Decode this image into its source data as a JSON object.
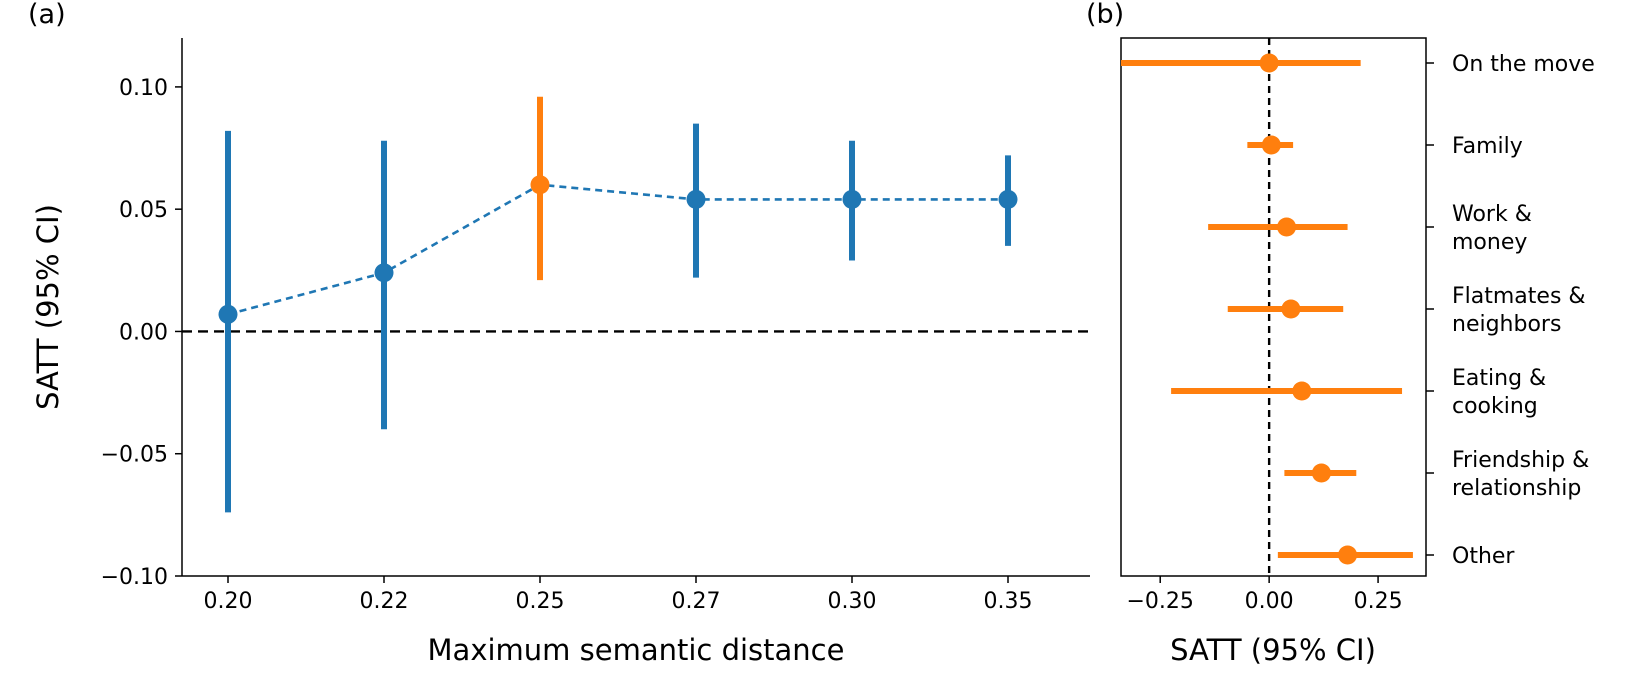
{
  "chart_data": [
    {
      "panel": "(a)",
      "type": "errorbar",
      "xlabel": "Maximum semantic distance",
      "ylabel": "SATT (95% CI)",
      "x_tick_labels": [
        "0.20",
        "0.22",
        "0.25",
        "0.27",
        "0.30",
        "0.35"
      ],
      "y_ticks": [
        -0.1,
        -0.05,
        0.0,
        0.05,
        0.1
      ],
      "y_tick_labels": [
        "−0.10",
        "−0.05",
        "0.00",
        "0.05",
        "0.10"
      ],
      "ylim": [
        -0.1,
        0.12
      ],
      "reference_line": 0.0,
      "points": [
        {
          "x": "0.20",
          "y": 0.007,
          "lo": -0.074,
          "hi": 0.082,
          "highlight": false
        },
        {
          "x": "0.22",
          "y": 0.024,
          "lo": -0.04,
          "hi": 0.078,
          "highlight": false
        },
        {
          "x": "0.25",
          "y": 0.06,
          "lo": 0.021,
          "hi": 0.096,
          "highlight": true
        },
        {
          "x": "0.27",
          "y": 0.054,
          "lo": 0.022,
          "hi": 0.085,
          "highlight": false
        },
        {
          "x": "0.30",
          "y": 0.054,
          "lo": 0.029,
          "hi": 0.078,
          "highlight": false
        },
        {
          "x": "0.35",
          "y": 0.054,
          "lo": 0.035,
          "hi": 0.072,
          "highlight": false
        }
      ],
      "colors": {
        "default": "#1f77b4",
        "highlight": "#ff7f0e"
      }
    },
    {
      "panel": "(b)",
      "type": "forest",
      "xlabel": "SATT (95% CI)",
      "x_ticks": [
        -0.25,
        0.0,
        0.25
      ],
      "x_tick_labels": [
        "−0.25",
        "0.00",
        "0.25"
      ],
      "xlim": [
        -0.34,
        0.36
      ],
      "reference_line": 0.0,
      "categories": [
        {
          "label": [
            "On the move"
          ],
          "y": 0.0,
          "lo": -0.34,
          "hi": 0.21
        },
        {
          "label": [
            "Family"
          ],
          "y": 0.005,
          "lo": -0.05,
          "hi": 0.055
        },
        {
          "label": [
            "Work &",
            "money"
          ],
          "y": 0.04,
          "lo": -0.14,
          "hi": 0.18
        },
        {
          "label": [
            "Flatmates &",
            "neighbors"
          ],
          "y": 0.05,
          "lo": -0.095,
          "hi": 0.17
        },
        {
          "label": [
            "Eating &",
            "cooking"
          ],
          "y": 0.075,
          "lo": -0.225,
          "hi": 0.305
        },
        {
          "label": [
            "Friendship &",
            "relationship"
          ],
          "y": 0.12,
          "lo": 0.035,
          "hi": 0.2
        },
        {
          "label": [
            "Other"
          ],
          "y": 0.18,
          "lo": 0.02,
          "hi": 0.33
        }
      ],
      "color": "#ff7f0e"
    }
  ]
}
